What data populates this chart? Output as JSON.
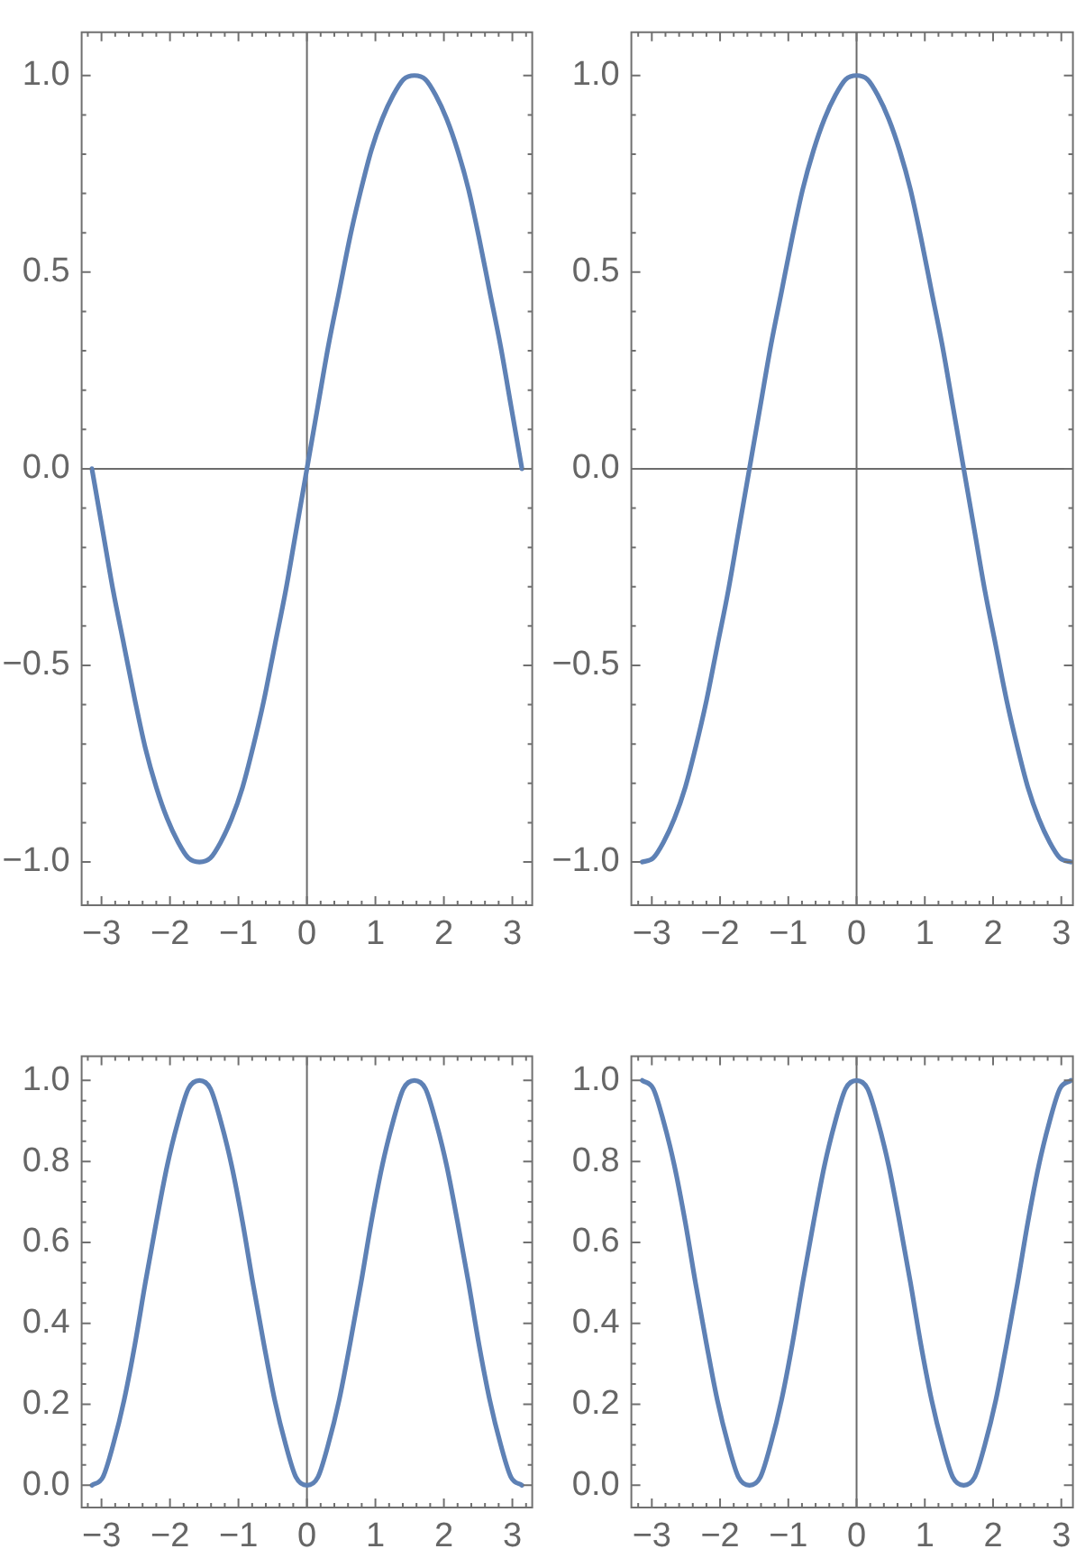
{
  "chart_data": [
    {
      "type": "line",
      "x": [
        -3.14,
        -2.98,
        -2.83,
        -2.67,
        -2.51,
        -2.36,
        -2.2,
        -2.04,
        -1.88,
        -1.73,
        -1.57,
        -1.41,
        -1.26,
        -1.1,
        -0.94,
        -0.79,
        -0.63,
        -0.47,
        -0.31,
        -0.16,
        0,
        0.16,
        0.31,
        0.47,
        0.63,
        0.79,
        0.94,
        1.1,
        1.26,
        1.41,
        1.57,
        1.73,
        1.88,
        2.04,
        2.2,
        2.36,
        2.51,
        2.67,
        2.83,
        2.98,
        3.14
      ],
      "values": [
        0,
        -0.16,
        -0.31,
        -0.45,
        -0.59,
        -0.71,
        -0.81,
        -0.89,
        -0.95,
        -0.99,
        -1,
        -0.99,
        -0.95,
        -0.89,
        -0.81,
        -0.71,
        -0.59,
        -0.45,
        -0.31,
        -0.16,
        0,
        0.16,
        0.31,
        0.45,
        0.59,
        0.71,
        0.81,
        0.89,
        0.95,
        0.99,
        1,
        0.99,
        0.95,
        0.89,
        0.81,
        0.71,
        0.59,
        0.45,
        0.31,
        0.16,
        0
      ],
      "color": "#5e81b5",
      "marker": "none",
      "grid": false,
      "legend": false,
      "xlim": [
        -3.29,
        3.29
      ],
      "ylim": [
        -1.11,
        1.11
      ],
      "xticks": [
        {
          "value": -3.2,
          "label": null
        },
        {
          "value": -3,
          "label": "−3"
        },
        {
          "value": -2.8,
          "label": null
        },
        {
          "value": -2.6,
          "label": null
        },
        {
          "value": -2.4,
          "label": null
        },
        {
          "value": -2.2,
          "label": null
        },
        {
          "value": -2,
          "label": "−2"
        },
        {
          "value": -1.8,
          "label": null
        },
        {
          "value": -1.6,
          "label": null
        },
        {
          "value": -1.4,
          "label": null
        },
        {
          "value": -1.2,
          "label": null
        },
        {
          "value": -1,
          "label": "−1"
        },
        {
          "value": -0.8,
          "label": null
        },
        {
          "value": -0.6,
          "label": null
        },
        {
          "value": -0.4,
          "label": null
        },
        {
          "value": -0.2,
          "label": null
        },
        0,
        {
          "value": 0.2,
          "label": null
        },
        {
          "value": 0.4,
          "label": null
        },
        {
          "value": 0.6,
          "label": null
        },
        {
          "value": 0.8,
          "label": null
        },
        1,
        {
          "value": 1.2,
          "label": null
        },
        {
          "value": 1.4,
          "label": null
        },
        {
          "value": 1.6,
          "label": null
        },
        {
          "value": 1.8,
          "label": null
        },
        2,
        {
          "value": 2.2,
          "label": null
        },
        {
          "value": 2.4,
          "label": null
        },
        {
          "value": 2.6,
          "label": null
        },
        {
          "value": 2.8,
          "label": null
        },
        3,
        {
          "value": 3.2,
          "label": null
        }
      ],
      "yticks": [
        {
          "value": -1,
          "label": "−1.0"
        },
        {
          "value": -0.9,
          "label": null
        },
        {
          "value": -0.8,
          "label": null
        },
        {
          "value": -0.7,
          "label": null
        },
        {
          "value": -0.6,
          "label": null
        },
        {
          "value": -0.5,
          "label": "−0.5"
        },
        {
          "value": -0.4,
          "label": null
        },
        {
          "value": -0.3,
          "label": null
        },
        {
          "value": -0.2,
          "label": null
        },
        {
          "value": -0.1,
          "label": null
        },
        {
          "value": 0,
          "label": "0.0"
        },
        {
          "value": 0.1,
          "label": null
        },
        {
          "value": 0.2,
          "label": null
        },
        {
          "value": 0.3,
          "label": null
        },
        {
          "value": 0.4,
          "label": null
        },
        0.5,
        {
          "value": 0.6,
          "label": null
        },
        {
          "value": 0.7,
          "label": null
        },
        {
          "value": 0.8,
          "label": null
        },
        {
          "value": 0.9,
          "label": null
        },
        {
          "value": 1,
          "label": "1.0"
        }
      ],
      "ref_lines": [
        {
          "axis": "x",
          "value": 0,
          "color": "#6b6b6b"
        },
        {
          "axis": "y",
          "value": 0,
          "color": "#6b6b6b"
        }
      ]
    },
    {
      "type": "line",
      "x": [
        -3.14,
        -2.98,
        -2.83,
        -2.67,
        -2.51,
        -2.36,
        -2.2,
        -2.04,
        -1.88,
        -1.73,
        -1.57,
        -1.41,
        -1.26,
        -1.1,
        -0.94,
        -0.79,
        -0.63,
        -0.47,
        -0.31,
        -0.16,
        0,
        0.16,
        0.31,
        0.47,
        0.63,
        0.79,
        0.94,
        1.1,
        1.26,
        1.41,
        1.57,
        1.73,
        1.88,
        2.04,
        2.2,
        2.36,
        2.51,
        2.67,
        2.83,
        2.98,
        3.14
      ],
      "values": [
        -1,
        -0.99,
        -0.95,
        -0.89,
        -0.81,
        -0.71,
        -0.59,
        -0.45,
        -0.31,
        -0.16,
        0,
        0.16,
        0.31,
        0.45,
        0.59,
        0.71,
        0.81,
        0.89,
        0.95,
        0.99,
        1,
        0.99,
        0.95,
        0.89,
        0.81,
        0.71,
        0.59,
        0.45,
        0.31,
        0.16,
        0,
        -0.16,
        -0.31,
        -0.45,
        -0.59,
        -0.71,
        -0.81,
        -0.89,
        -0.95,
        -0.99,
        -1
      ],
      "color": "#5e81b5",
      "marker": "none",
      "grid": false,
      "legend": false,
      "xlim": [
        -3.3,
        3.17
      ],
      "ylim": [
        -1.11,
        1.11
      ],
      "xticks": [
        {
          "value": -3.2,
          "label": null
        },
        {
          "value": -3,
          "label": "−3"
        },
        {
          "value": -2.8,
          "label": null
        },
        {
          "value": -2.6,
          "label": null
        },
        {
          "value": -2.4,
          "label": null
        },
        {
          "value": -2.2,
          "label": null
        },
        {
          "value": -2,
          "label": "−2"
        },
        {
          "value": -1.8,
          "label": null
        },
        {
          "value": -1.6,
          "label": null
        },
        {
          "value": -1.4,
          "label": null
        },
        {
          "value": -1.2,
          "label": null
        },
        {
          "value": -1,
          "label": "−1"
        },
        {
          "value": -0.8,
          "label": null
        },
        {
          "value": -0.6,
          "label": null
        },
        {
          "value": -0.4,
          "label": null
        },
        {
          "value": -0.2,
          "label": null
        },
        0,
        {
          "value": 0.2,
          "label": null
        },
        {
          "value": 0.4,
          "label": null
        },
        {
          "value": 0.6,
          "label": null
        },
        {
          "value": 0.8,
          "label": null
        },
        1,
        {
          "value": 1.2,
          "label": null
        },
        {
          "value": 1.4,
          "label": null
        },
        {
          "value": 1.6,
          "label": null
        },
        {
          "value": 1.8,
          "label": null
        },
        2,
        {
          "value": 2.2,
          "label": null
        },
        {
          "value": 2.4,
          "label": null
        },
        {
          "value": 2.6,
          "label": null
        },
        {
          "value": 2.8,
          "label": null
        },
        3
      ],
      "yticks": [
        {
          "value": -1,
          "label": "−1.0"
        },
        {
          "value": -0.9,
          "label": null
        },
        {
          "value": -0.8,
          "label": null
        },
        {
          "value": -0.7,
          "label": null
        },
        {
          "value": -0.6,
          "label": null
        },
        {
          "value": -0.5,
          "label": "−0.5"
        },
        {
          "value": -0.4,
          "label": null
        },
        {
          "value": -0.3,
          "label": null
        },
        {
          "value": -0.2,
          "label": null
        },
        {
          "value": -0.1,
          "label": null
        },
        {
          "value": 0,
          "label": "0.0"
        },
        {
          "value": 0.1,
          "label": null
        },
        {
          "value": 0.2,
          "label": null
        },
        {
          "value": 0.3,
          "label": null
        },
        {
          "value": 0.4,
          "label": null
        },
        0.5,
        {
          "value": 0.6,
          "label": null
        },
        {
          "value": 0.7,
          "label": null
        },
        {
          "value": 0.8,
          "label": null
        },
        {
          "value": 0.9,
          "label": null
        },
        {
          "value": 1,
          "label": "1.0"
        }
      ],
      "ref_lines": [
        {
          "axis": "x",
          "value": 0,
          "color": "#6b6b6b"
        },
        {
          "axis": "y",
          "value": 0,
          "color": "#6b6b6b"
        }
      ]
    },
    {
      "type": "line",
      "x": [
        -3.14,
        -2.98,
        -2.83,
        -2.67,
        -2.51,
        -2.36,
        -2.2,
        -2.04,
        -1.88,
        -1.73,
        -1.57,
        -1.41,
        -1.26,
        -1.1,
        -0.94,
        -0.79,
        -0.63,
        -0.47,
        -0.31,
        -0.16,
        0,
        0.16,
        0.31,
        0.47,
        0.63,
        0.79,
        0.94,
        1.1,
        1.26,
        1.41,
        1.57,
        1.73,
        1.88,
        2.04,
        2.2,
        2.36,
        2.51,
        2.67,
        2.83,
        2.98,
        3.14
      ],
      "values": [
        0,
        0.02,
        0.1,
        0.21,
        0.35,
        0.5,
        0.65,
        0.79,
        0.9,
        0.98,
        1,
        0.98,
        0.9,
        0.79,
        0.65,
        0.5,
        0.35,
        0.21,
        0.1,
        0.02,
        0,
        0.02,
        0.1,
        0.21,
        0.35,
        0.5,
        0.65,
        0.79,
        0.9,
        0.98,
        1,
        0.98,
        0.9,
        0.79,
        0.65,
        0.5,
        0.35,
        0.21,
        0.1,
        0.02,
        0
      ],
      "color": "#5e81b5",
      "marker": "none",
      "grid": false,
      "legend": false,
      "xlim": [
        -3.29,
        3.29
      ],
      "ylim": [
        -0.055,
        1.06
      ],
      "xticks": [
        {
          "value": -3.2,
          "label": null
        },
        {
          "value": -3,
          "label": "−3"
        },
        {
          "value": -2.8,
          "label": null
        },
        {
          "value": -2.6,
          "label": null
        },
        {
          "value": -2.4,
          "label": null
        },
        {
          "value": -2.2,
          "label": null
        },
        {
          "value": -2,
          "label": "−2"
        },
        {
          "value": -1.8,
          "label": null
        },
        {
          "value": -1.6,
          "label": null
        },
        {
          "value": -1.4,
          "label": null
        },
        {
          "value": -1.2,
          "label": null
        },
        {
          "value": -1,
          "label": "−1"
        },
        {
          "value": -0.8,
          "label": null
        },
        {
          "value": -0.6,
          "label": null
        },
        {
          "value": -0.4,
          "label": null
        },
        {
          "value": -0.2,
          "label": null
        },
        0,
        {
          "value": 0.2,
          "label": null
        },
        {
          "value": 0.4,
          "label": null
        },
        {
          "value": 0.6,
          "label": null
        },
        {
          "value": 0.8,
          "label": null
        },
        1,
        {
          "value": 1.2,
          "label": null
        },
        {
          "value": 1.4,
          "label": null
        },
        {
          "value": 1.6,
          "label": null
        },
        {
          "value": 1.8,
          "label": null
        },
        2,
        {
          "value": 2.2,
          "label": null
        },
        {
          "value": 2.4,
          "label": null
        },
        {
          "value": 2.6,
          "label": null
        },
        {
          "value": 2.8,
          "label": null
        },
        3,
        {
          "value": 3.2,
          "label": null
        }
      ],
      "yticks": [
        {
          "value": 0,
          "label": "0.0"
        },
        {
          "value": 0.05,
          "label": null
        },
        {
          "value": 0.1,
          "label": null
        },
        {
          "value": 0.15,
          "label": null
        },
        0.2,
        {
          "value": 0.25,
          "label": null
        },
        {
          "value": 0.3,
          "label": null
        },
        {
          "value": 0.35,
          "label": null
        },
        0.4,
        {
          "value": 0.45,
          "label": null
        },
        {
          "value": 0.5,
          "label": null
        },
        {
          "value": 0.55,
          "label": null
        },
        0.6,
        {
          "value": 0.65,
          "label": null
        },
        {
          "value": 0.7,
          "label": null
        },
        {
          "value": 0.75,
          "label": null
        },
        0.8,
        {
          "value": 0.85,
          "label": null
        },
        {
          "value": 0.9,
          "label": null
        },
        {
          "value": 0.95,
          "label": null
        },
        {
          "value": 1,
          "label": "1.0"
        }
      ],
      "ref_lines": [
        {
          "axis": "x",
          "value": 0,
          "color": "#6b6b6b"
        }
      ]
    },
    {
      "type": "line",
      "x": [
        -3.14,
        -2.98,
        -2.83,
        -2.67,
        -2.51,
        -2.36,
        -2.2,
        -2.04,
        -1.88,
        -1.73,
        -1.57,
        -1.41,
        -1.26,
        -1.1,
        -0.94,
        -0.79,
        -0.63,
        -0.47,
        -0.31,
        -0.16,
        0,
        0.16,
        0.31,
        0.47,
        0.63,
        0.79,
        0.94,
        1.1,
        1.26,
        1.41,
        1.57,
        1.73,
        1.88,
        2.04,
        2.2,
        2.36,
        2.51,
        2.67,
        2.83,
        2.98,
        3.14
      ],
      "values": [
        1,
        0.98,
        0.9,
        0.79,
        0.65,
        0.5,
        0.35,
        0.21,
        0.1,
        0.02,
        0,
        0.02,
        0.1,
        0.21,
        0.35,
        0.5,
        0.65,
        0.79,
        0.9,
        0.98,
        1,
        0.98,
        0.9,
        0.79,
        0.65,
        0.5,
        0.35,
        0.21,
        0.1,
        0.02,
        0,
        0.02,
        0.1,
        0.21,
        0.35,
        0.5,
        0.65,
        0.79,
        0.9,
        0.98,
        1
      ],
      "color": "#5e81b5",
      "marker": "none",
      "grid": false,
      "legend": false,
      "xlim": [
        -3.3,
        3.17
      ],
      "ylim": [
        -0.055,
        1.06
      ],
      "xticks": [
        {
          "value": -3.2,
          "label": null
        },
        {
          "value": -3,
          "label": "−3"
        },
        {
          "value": -2.8,
          "label": null
        },
        {
          "value": -2.6,
          "label": null
        },
        {
          "value": -2.4,
          "label": null
        },
        {
          "value": -2.2,
          "label": null
        },
        {
          "value": -2,
          "label": "−2"
        },
        {
          "value": -1.8,
          "label": null
        },
        {
          "value": -1.6,
          "label": null
        },
        {
          "value": -1.4,
          "label": null
        },
        {
          "value": -1.2,
          "label": null
        },
        {
          "value": -1,
          "label": "−1"
        },
        {
          "value": -0.8,
          "label": null
        },
        {
          "value": -0.6,
          "label": null
        },
        {
          "value": -0.4,
          "label": null
        },
        {
          "value": -0.2,
          "label": null
        },
        0,
        {
          "value": 0.2,
          "label": null
        },
        {
          "value": 0.4,
          "label": null
        },
        {
          "value": 0.6,
          "label": null
        },
        {
          "value": 0.8,
          "label": null
        },
        1,
        {
          "value": 1.2,
          "label": null
        },
        {
          "value": 1.4,
          "label": null
        },
        {
          "value": 1.6,
          "label": null
        },
        {
          "value": 1.8,
          "label": null
        },
        2,
        {
          "value": 2.2,
          "label": null
        },
        {
          "value": 2.4,
          "label": null
        },
        {
          "value": 2.6,
          "label": null
        },
        {
          "value": 2.8,
          "label": null
        },
        3
      ],
      "yticks": [
        {
          "value": 0,
          "label": "0.0"
        },
        {
          "value": 0.05,
          "label": null
        },
        {
          "value": 0.1,
          "label": null
        },
        {
          "value": 0.15,
          "label": null
        },
        0.2,
        {
          "value": 0.25,
          "label": null
        },
        {
          "value": 0.3,
          "label": null
        },
        {
          "value": 0.35,
          "label": null
        },
        0.4,
        {
          "value": 0.45,
          "label": null
        },
        {
          "value": 0.5,
          "label": null
        },
        {
          "value": 0.55,
          "label": null
        },
        0.6,
        {
          "value": 0.65,
          "label": null
        },
        {
          "value": 0.7,
          "label": null
        },
        {
          "value": 0.75,
          "label": null
        },
        0.8,
        {
          "value": 0.85,
          "label": null
        },
        {
          "value": 0.9,
          "label": null
        },
        {
          "value": 0.95,
          "label": null
        },
        {
          "value": 1,
          "label": "1.0"
        }
      ],
      "ref_lines": [
        {
          "axis": "x",
          "value": 0,
          "color": "#6b6b6b"
        }
      ]
    }
  ]
}
